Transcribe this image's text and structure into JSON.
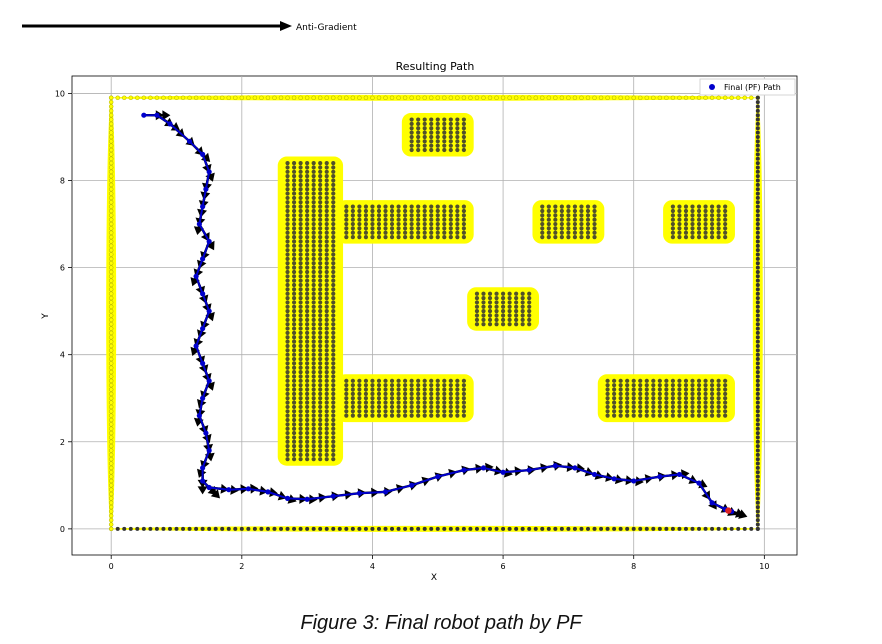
{
  "figure": {
    "caption": "Figure 3: Final robot path by PF"
  },
  "top_arrow": {
    "label": "Anti-Gradient"
  },
  "chart_data": {
    "type": "scatter",
    "title": "Resulting Path",
    "xlabel": "X",
    "ylabel": "Y",
    "xlim": [
      -0.6,
      10.5
    ],
    "ylim": [
      -0.6,
      10.4
    ],
    "xticks": [
      0,
      2,
      4,
      6,
      8,
      10
    ],
    "yticks": [
      0,
      2,
      4,
      6,
      8,
      10
    ],
    "grid": true,
    "legend": {
      "position": "top-right",
      "entries": [
        {
          "name": "Final (PF) Path",
          "color": "#0000cc"
        }
      ]
    },
    "colors": {
      "influence": "#ffff00",
      "obstacle": "#333333",
      "path": "#0000cc",
      "arrow": "#000000",
      "goal": "#dd2222"
    },
    "obstacles": [
      {
        "x": [
          2.7,
          3.4
        ],
        "y": [
          1.6,
          8.4
        ]
      },
      {
        "x": [
          3.6,
          5.4
        ],
        "y": [
          6.7,
          7.4
        ]
      },
      {
        "x": [
          3.6,
          5.4
        ],
        "y": [
          2.6,
          3.4
        ]
      },
      {
        "x": [
          4.6,
          5.4
        ],
        "y": [
          8.7,
          9.4
        ]
      },
      {
        "x": [
          6.6,
          7.4
        ],
        "y": [
          6.7,
          7.4
        ]
      },
      {
        "x": [
          8.6,
          9.4
        ],
        "y": [
          6.7,
          7.4
        ]
      },
      {
        "x": [
          5.6,
          6.4
        ],
        "y": [
          4.7,
          5.4
        ]
      },
      {
        "x": [
          7.6,
          9.4
        ],
        "y": [
          2.6,
          3.4
        ]
      }
    ],
    "boundary": {
      "x": [
        0,
        9.9
      ],
      "y": [
        0,
        9.9
      ]
    },
    "path": {
      "name": "Final (PF) Path",
      "x": [
        0.5,
        0.7,
        0.9,
        1.2,
        1.4,
        1.5,
        1.45,
        1.4,
        1.35,
        1.5,
        1.4,
        1.3,
        1.4,
        1.5,
        1.4,
        1.3,
        1.4,
        1.5,
        1.4,
        1.35,
        1.45,
        1.5,
        1.4,
        1.4,
        1.5,
        1.8,
        2.1,
        2.4,
        2.7,
        3.0,
        3.4,
        3.8,
        4.2,
        4.6,
        5.0,
        5.4,
        5.7,
        6.0,
        6.4,
        6.8,
        7.1,
        7.4,
        7.7,
        8.0,
        8.4,
        8.7,
        9.0,
        9.2,
        9.4,
        9.5
      ],
      "y": [
        9.5,
        9.5,
        9.3,
        8.9,
        8.6,
        8.2,
        7.8,
        7.4,
        7.0,
        6.6,
        6.2,
        5.8,
        5.4,
        5.0,
        4.6,
        4.2,
        3.8,
        3.4,
        3.0,
        2.6,
        2.2,
        1.8,
        1.4,
        1.1,
        0.95,
        0.9,
        0.92,
        0.85,
        0.7,
        0.68,
        0.75,
        0.82,
        0.85,
        1.0,
        1.2,
        1.35,
        1.4,
        1.3,
        1.35,
        1.45,
        1.4,
        1.25,
        1.15,
        1.1,
        1.2,
        1.25,
        1.05,
        0.6,
        0.45,
        0.4
      ]
    },
    "goal": {
      "x": 9.45,
      "y": 0.42
    }
  }
}
